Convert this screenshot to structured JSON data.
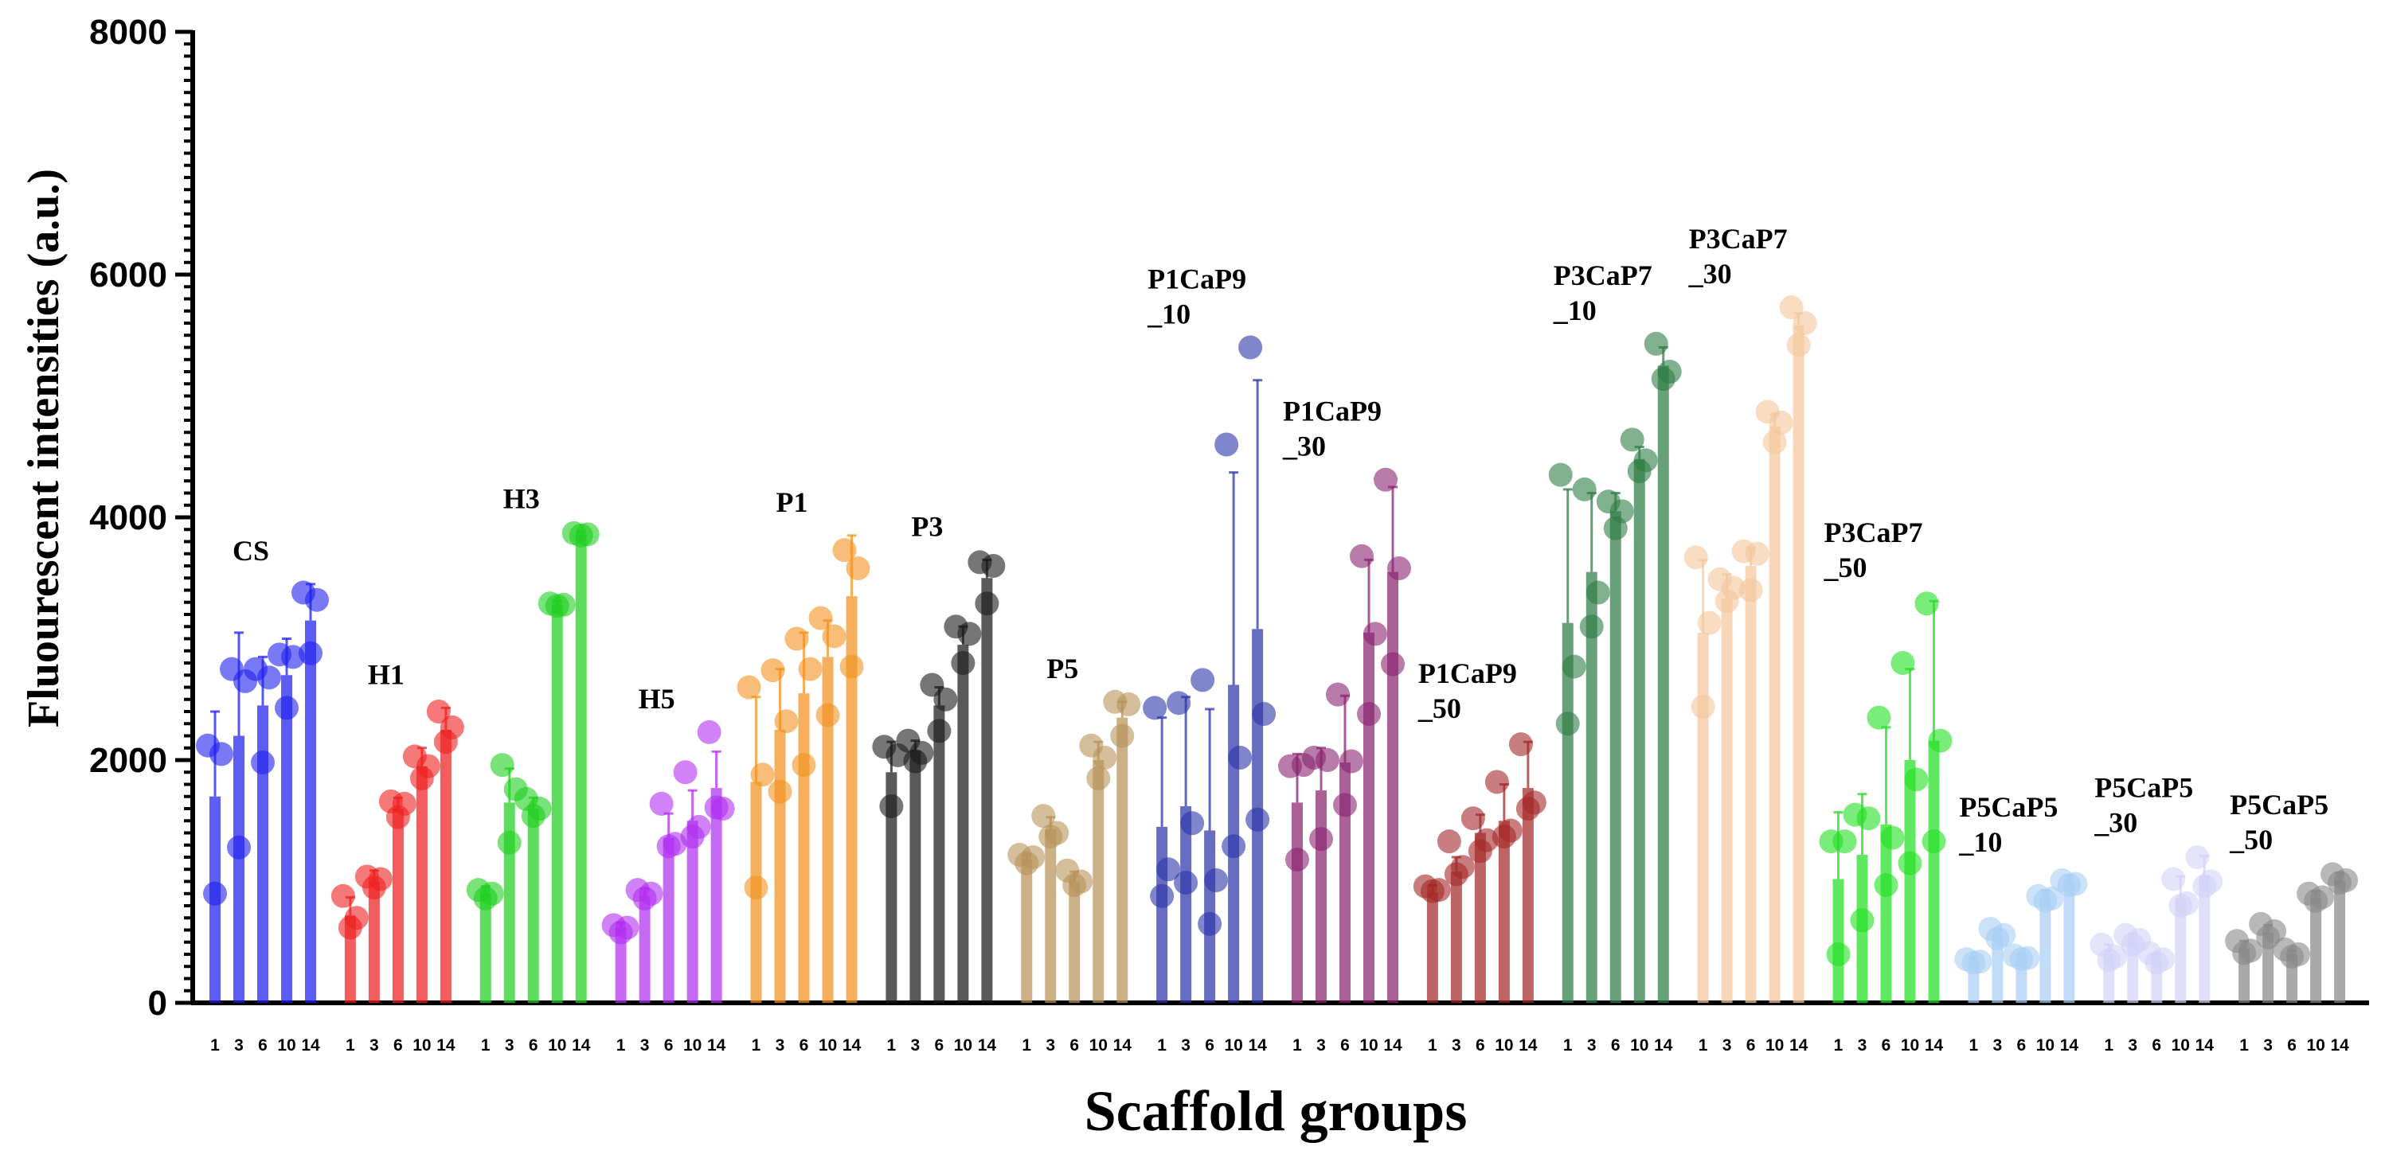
{
  "chart_data": {
    "type": "bar",
    "title": "",
    "xlabel": "Scaffold groups",
    "ylabel": "Fluourescent intensities (a.u.)",
    "ylim": [
      0,
      8000
    ],
    "yticks": [
      0,
      2000,
      4000,
      6000,
      8000
    ],
    "ytick_labels": [
      "0",
      "2000",
      "4000",
      "6000",
      "8000"
    ],
    "grid": false,
    "timepoints": [
      "1",
      "3",
      "6",
      "10",
      "14"
    ],
    "groups": [
      {
        "name": "CS",
        "label_lines": [
          "CS"
        ],
        "color": "#1f1fef",
        "means": [
          1700,
          2200,
          2450,
          2700,
          3150
        ],
        "sd": [
          700,
          850,
          400,
          300,
          300
        ],
        "points": [
          [
            2120,
            2050,
            900
          ],
          [
            2750,
            2650,
            1280
          ],
          [
            2750,
            2680,
            1980
          ],
          [
            2870,
            2850,
            2430
          ],
          [
            3380,
            3320,
            2880
          ]
        ]
      },
      {
        "name": "H1",
        "label_lines": [
          "H1"
        ],
        "color": "#ef1f1f",
        "means": [
          720,
          1000,
          1600,
          1950,
          2250
        ],
        "sd": [
          150,
          90,
          90,
          150,
          180
        ],
        "points": [
          [
            880,
            700,
            620
          ],
          [
            1040,
            1020,
            950
          ],
          [
            1660,
            1640,
            1530
          ],
          [
            2030,
            1950,
            1850
          ],
          [
            2400,
            2270,
            2150
          ]
        ]
      },
      {
        "name": "H3",
        "label_lines": [
          "H3"
        ],
        "color": "#1fcf1f",
        "means": [
          900,
          1650,
          1600,
          3280,
          3860
        ],
        "sd": [
          60,
          280,
          90,
          30,
          20
        ],
        "points": [
          [
            930,
            900,
            860
          ],
          [
            1960,
            1760,
            1320
          ],
          [
            1680,
            1600,
            1540
          ],
          [
            3290,
            3280,
            3270
          ],
          [
            3870,
            3860,
            3850
          ]
        ]
      },
      {
        "name": "H5",
        "label_lines": [
          "H5"
        ],
        "color": "#b02ff0",
        "means": [
          620,
          880,
          1360,
          1500,
          1770
        ],
        "sd": [
          40,
          60,
          200,
          250,
          300
        ],
        "points": [
          [
            640,
            620,
            580
          ],
          [
            930,
            900,
            860
          ],
          [
            1640,
            1310,
            1290
          ],
          [
            1900,
            1450,
            1370
          ],
          [
            2230,
            1600,
            1610
          ]
        ]
      },
      {
        "name": "P1",
        "label_lines": [
          "P1"
        ],
        "color": "#f2911f",
        "means": [
          1820,
          2250,
          2550,
          2850,
          3350
        ],
        "sd": [
          700,
          500,
          500,
          300,
          500
        ],
        "points": [
          [
            2600,
            1880,
            950
          ],
          [
            2740,
            2320,
            1740
          ],
          [
            3000,
            2750,
            1960
          ],
          [
            3170,
            3020,
            2370
          ],
          [
            3730,
            3580,
            2770
          ]
        ]
      },
      {
        "name": "P3",
        "label_lines": [
          "P3"
        ],
        "color": "#1a1a1a",
        "means": [
          1900,
          2080,
          2450,
          2950,
          3500
        ],
        "sd": [
          250,
          80,
          150,
          150,
          150
        ],
        "points": [
          [
            2110,
            2040,
            1620
          ],
          [
            2160,
            2060,
            1990
          ],
          [
            2620,
            2500,
            2240
          ],
          [
            3100,
            3040,
            2800
          ],
          [
            3630,
            3600,
            3290
          ]
        ]
      },
      {
        "name": "P5",
        "label_lines": [
          "P5"
        ],
        "color": "#b8925a",
        "means": [
          1180,
          1430,
          1000,
          2000,
          2350
        ],
        "sd": [
          40,
          100,
          80,
          150,
          130
        ],
        "points": [
          [
            1220,
            1200,
            1150
          ],
          [
            1540,
            1400,
            1370
          ],
          [
            1090,
            1000,
            970
          ],
          [
            2120,
            2020,
            1850
          ],
          [
            2480,
            2460,
            2200
          ]
        ]
      },
      {
        "name": "P1CaP9_10",
        "label_lines": [
          "P1CaP9",
          "_10"
        ],
        "color": "#2c35a8",
        "means": [
          1450,
          1620,
          1420,
          2620,
          3080
        ],
        "sd": [
          900,
          900,
          1000,
          1750,
          2050
        ],
        "points": [
          [
            2430,
            1100,
            880
          ],
          [
            2470,
            1480,
            990
          ],
          [
            2660,
            1010,
            650
          ],
          [
            4600,
            2020,
            1290
          ],
          [
            5400,
            2380,
            1510
          ]
        ]
      },
      {
        "name": "P1CaP9_30",
        "label_lines": [
          "P1CaP9",
          "_30"
        ],
        "color": "#8b2370",
        "means": [
          1650,
          1750,
          1980,
          3050,
          3550
        ],
        "sd": [
          400,
          350,
          550,
          600,
          700
        ],
        "points": [
          [
            1950,
            1960,
            1180
          ],
          [
            2020,
            2000,
            1350
          ],
          [
            2540,
            1990,
            1630
          ],
          [
            3680,
            3040,
            2380
          ],
          [
            4310,
            3580,
            2790
          ]
        ]
      },
      {
        "name": "P1CaP9_50",
        "label_lines": [
          "P1CaP9",
          "_50"
        ],
        "color": "#a32828",
        "means": [
          910,
          1080,
          1400,
          1500,
          1770
        ],
        "sd": [
          60,
          120,
          150,
          300,
          380
        ],
        "points": [
          [
            960,
            930,
            920
          ],
          [
            1330,
            1120,
            1060
          ],
          [
            1520,
            1340,
            1250
          ],
          [
            1820,
            1420,
            1370
          ],
          [
            2130,
            1650,
            1600
          ]
        ]
      },
      {
        "name": "P3CaP7_10",
        "label_lines": [
          "P3CaP7",
          "_10"
        ],
        "color": "#2e7d45",
        "means": [
          3130,
          3550,
          4050,
          4480,
          5250
        ],
        "sd": [
          1100,
          650,
          150,
          100,
          150
        ],
        "points": [
          [
            4350,
            2770,
            2300
          ],
          [
            4230,
            3380,
            3100
          ],
          [
            4130,
            4050,
            3910
          ],
          [
            4640,
            4470,
            4380
          ],
          [
            5430,
            5200,
            5140
          ]
        ]
      },
      {
        "name": "P3CaP7_30",
        "label_lines": [
          "P3CaP7",
          "_30"
        ],
        "color": "#f4c79b",
        "means": [
          3050,
          3330,
          3600,
          4750,
          5580
        ],
        "sd": [
          600,
          200,
          150,
          100,
          100
        ],
        "points": [
          [
            3670,
            3130,
            2440
          ],
          [
            3490,
            3420,
            3310
          ],
          [
            3720,
            3700,
            3400
          ],
          [
            4870,
            4780,
            4620
          ],
          [
            5730,
            5600,
            5420
          ]
        ]
      },
      {
        "name": "P3CaP7_50",
        "label_lines": [
          "P3CaP7",
          "_50"
        ],
        "color": "#22e022",
        "means": [
          1020,
          1220,
          1470,
          2000,
          2160
        ],
        "sd": [
          550,
          500,
          800,
          750,
          1150
        ],
        "points": [
          [
            1330,
            1330,
            400
          ],
          [
            1550,
            1520,
            680
          ],
          [
            2350,
            1360,
            970
          ],
          [
            2800,
            1840,
            1150
          ],
          [
            3290,
            2160,
            1330
          ]
        ]
      },
      {
        "name": "P5CaP5_10",
        "label_lines": [
          "P5CaP5",
          "_10"
        ],
        "color": "#a8cff5",
        "means": [
          340,
          560,
          370,
          860,
          990
        ],
        "sd": [
          30,
          40,
          30,
          70,
          60
        ],
        "points": [
          [
            360,
            340,
            330
          ],
          [
            610,
            560,
            530
          ],
          [
            390,
            370,
            360
          ],
          [
            880,
            860,
            840
          ],
          [
            1010,
            980,
            970
          ]
        ]
      },
      {
        "name": "P5CaP5_30",
        "label_lines": [
          "P5CaP5",
          "_30"
        ],
        "color": "#d2d2f8",
        "means": [
          400,
          510,
          360,
          860,
          1050
        ],
        "sd": [
          80,
          60,
          40,
          180,
          160
        ],
        "points": [
          [
            480,
            380,
            350
          ],
          [
            560,
            520,
            480
          ],
          [
            410,
            360,
            330
          ],
          [
            1020,
            820,
            800
          ],
          [
            1200,
            1000,
            960
          ]
        ]
      },
      {
        "name": "P5CaP5_50",
        "label_lines": [
          "P5CaP5",
          "_50"
        ],
        "color": "#888888",
        "means": [
          450,
          580,
          400,
          860,
          1010
        ],
        "sd": [
          60,
          60,
          30,
          60,
          60
        ],
        "points": [
          [
            510,
            430,
            410
          ],
          [
            650,
            590,
            540
          ],
          [
            440,
            400,
            380
          ],
          [
            900,
            870,
            840
          ],
          [
            1060,
            1010,
            990
          ]
        ]
      }
    ]
  }
}
